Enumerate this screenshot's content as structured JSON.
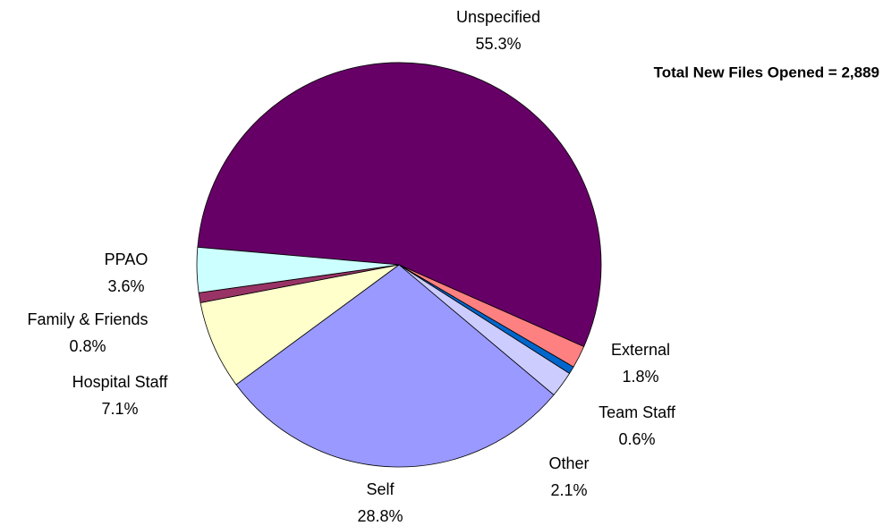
{
  "chart_data": {
    "type": "pie",
    "annotation": "Total New Files Opened = 2,889",
    "categories": [
      "Unspecified",
      "External",
      "Team Staff",
      "Other",
      "Self",
      "Hospital Staff",
      "Family & Friends",
      "PPAO"
    ],
    "values": [
      55.3,
      1.8,
      0.6,
      2.1,
      28.8,
      7.1,
      0.8,
      3.6
    ],
    "value_labels": [
      "55.3%",
      "1.8%",
      "0.6%",
      "2.1%",
      "28.8%",
      "7.1%",
      "0.8%",
      "3.6%"
    ],
    "colors": [
      "#660066",
      "#ff8080",
      "#0066cc",
      "#ccccff",
      "#9999ff",
      "#ffffcc",
      "#993366",
      "#ccffff"
    ]
  }
}
